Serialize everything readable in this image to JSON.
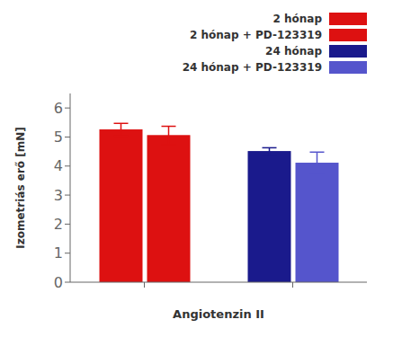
{
  "chart_data": {
    "type": "bar",
    "categories": [
      null,
      null
    ],
    "xlabel": "Angiotenzin II",
    "ylabel": "Izometriás erő [mN]",
    "ylim": [
      0,
      6.5
    ],
    "yticks": [
      0,
      1,
      2,
      3,
      4,
      5,
      6
    ],
    "grid": false,
    "legend": "top right",
    "series": [
      {
        "name": "2 hónap",
        "color": "#dd1111",
        "values": [
          5.25,
          null
        ],
        "errors": [
          0.22,
          null
        ]
      },
      {
        "name": "2 hónap + PD-123319",
        "color": "#dd1111",
        "values": [
          5.05,
          null
        ],
        "errors": [
          0.32,
          null
        ]
      },
      {
        "name": "24 hónap",
        "color": "#1a1a8c",
        "values": [
          null,
          4.5
        ],
        "errors": [
          null,
          0.13
        ]
      },
      {
        "name": "24 hónap + PD-123319",
        "color": "#5555cc",
        "values": [
          null,
          4.1
        ],
        "errors": [
          null,
          0.38
        ]
      }
    ]
  }
}
